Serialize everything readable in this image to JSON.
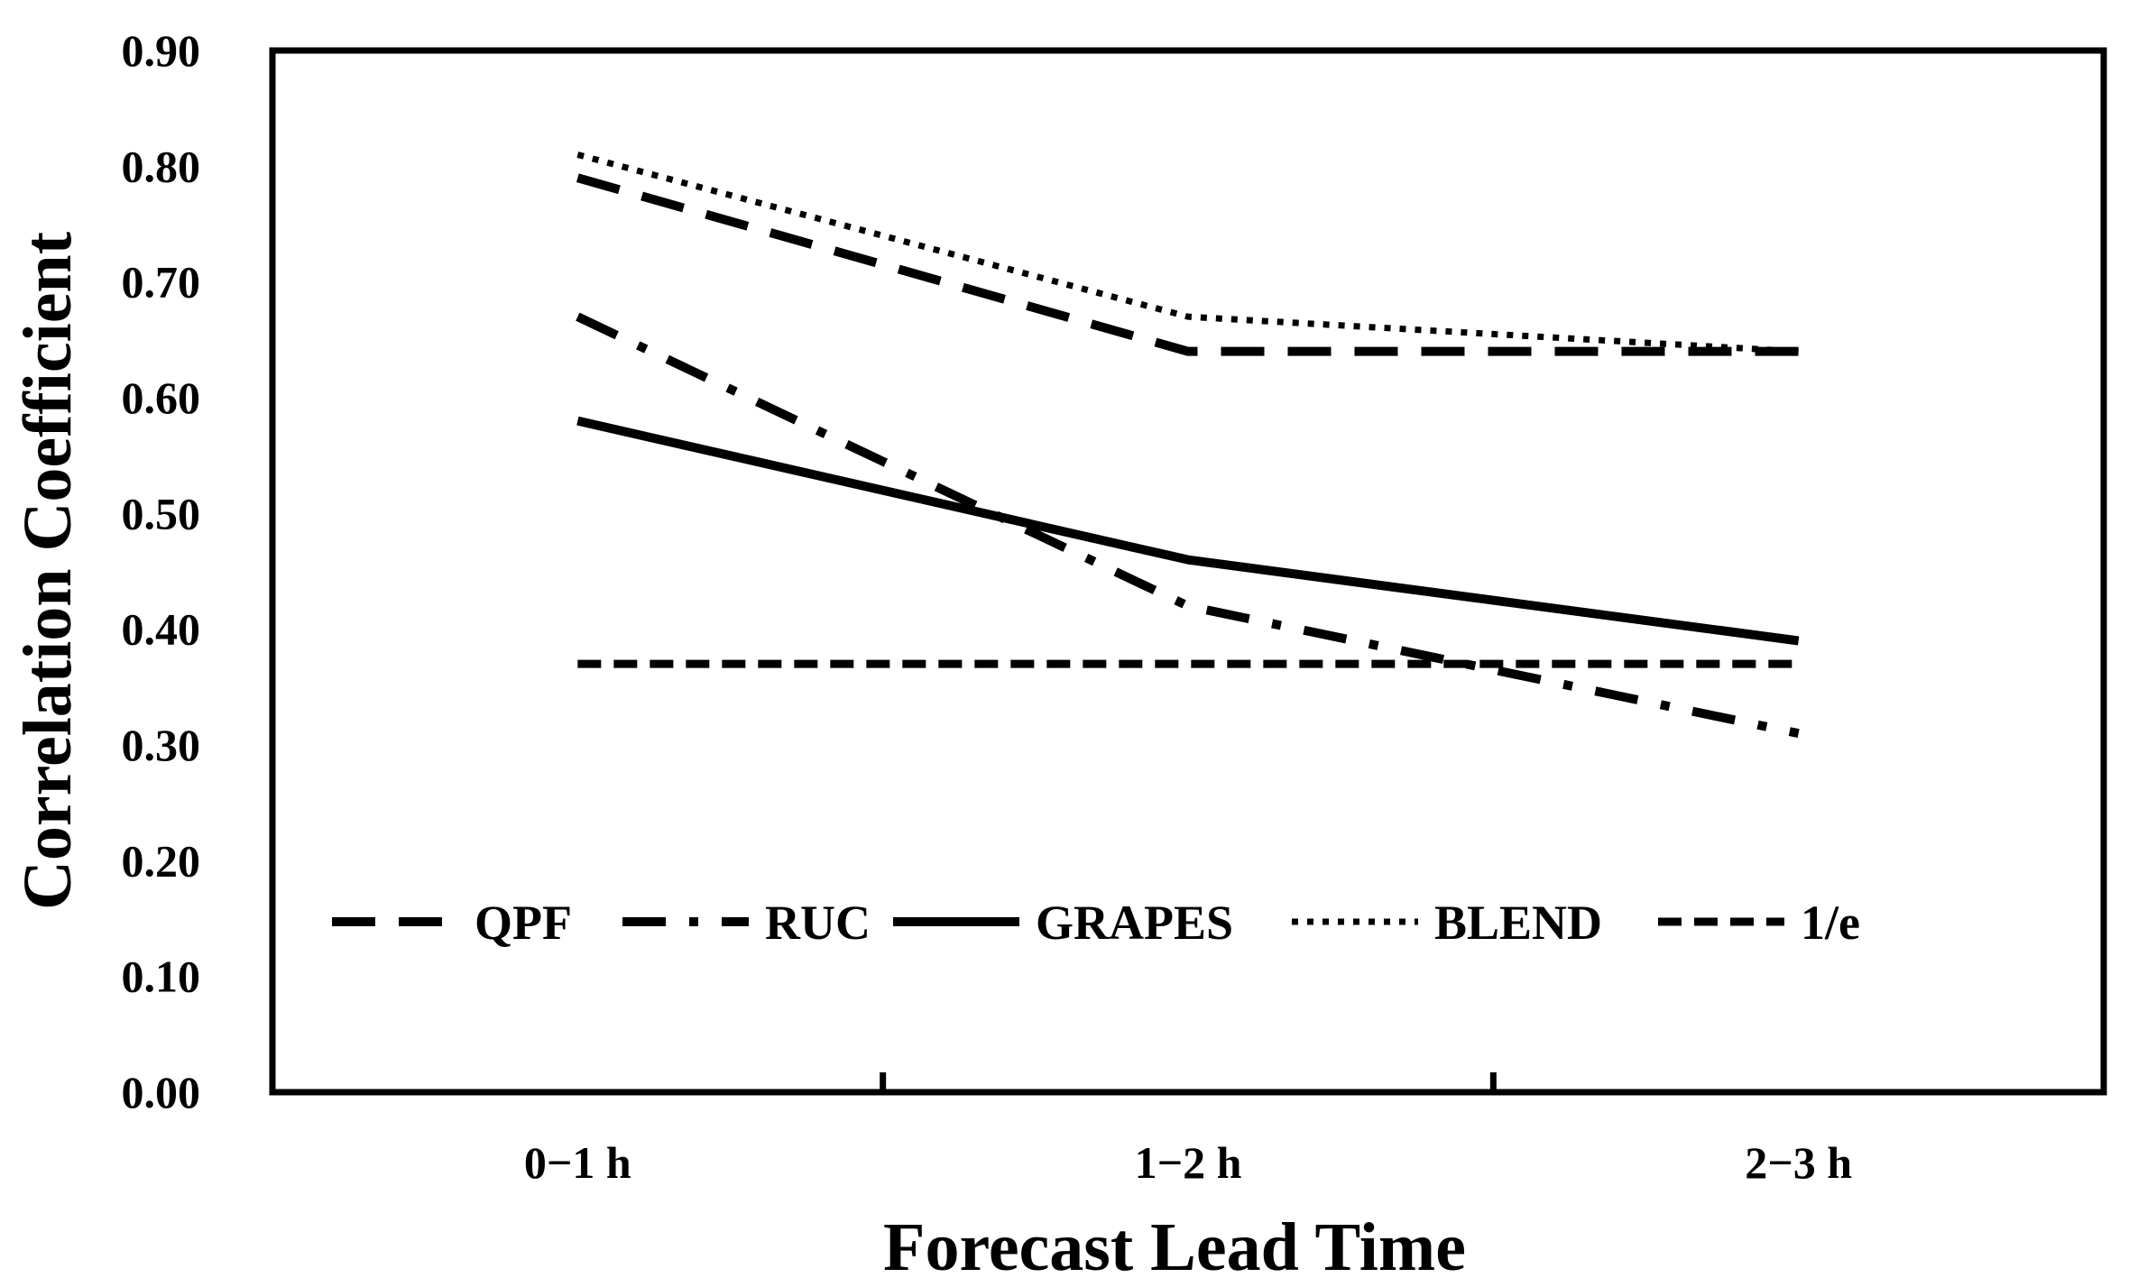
{
  "chart_data": {
    "type": "line",
    "title": "",
    "xlabel": "Forecast Lead Time",
    "ylabel": "Correlation Coefficient",
    "categories": [
      "0−1 h",
      "1−2 h",
      "2−3 h"
    ],
    "ylim": [
      0,
      0.9
    ],
    "yticks": [
      "0.00",
      "0.10",
      "0.20",
      "0.30",
      "0.40",
      "0.50",
      "0.60",
      "0.70",
      "0.80",
      "0.90"
    ],
    "grid": false,
    "legend_position": "bottom-inside",
    "series": [
      {
        "name": "QPF",
        "style": "long-dash",
        "values": [
          0.79,
          0.64,
          0.64
        ]
      },
      {
        "name": "RUC",
        "style": "dash-dot",
        "values": [
          0.67,
          0.42,
          0.31
        ]
      },
      {
        "name": "GRAPES",
        "style": "solid",
        "values": [
          0.58,
          0.46,
          0.39
        ]
      },
      {
        "name": "BLEND",
        "style": "dotted",
        "values": [
          0.81,
          0.67,
          0.64
        ]
      },
      {
        "name": "1/e",
        "style": "short-dash",
        "values": [
          0.37,
          0.37,
          0.37
        ]
      }
    ],
    "colors": {
      "line": "#000000",
      "background": "#ffffff"
    }
  }
}
